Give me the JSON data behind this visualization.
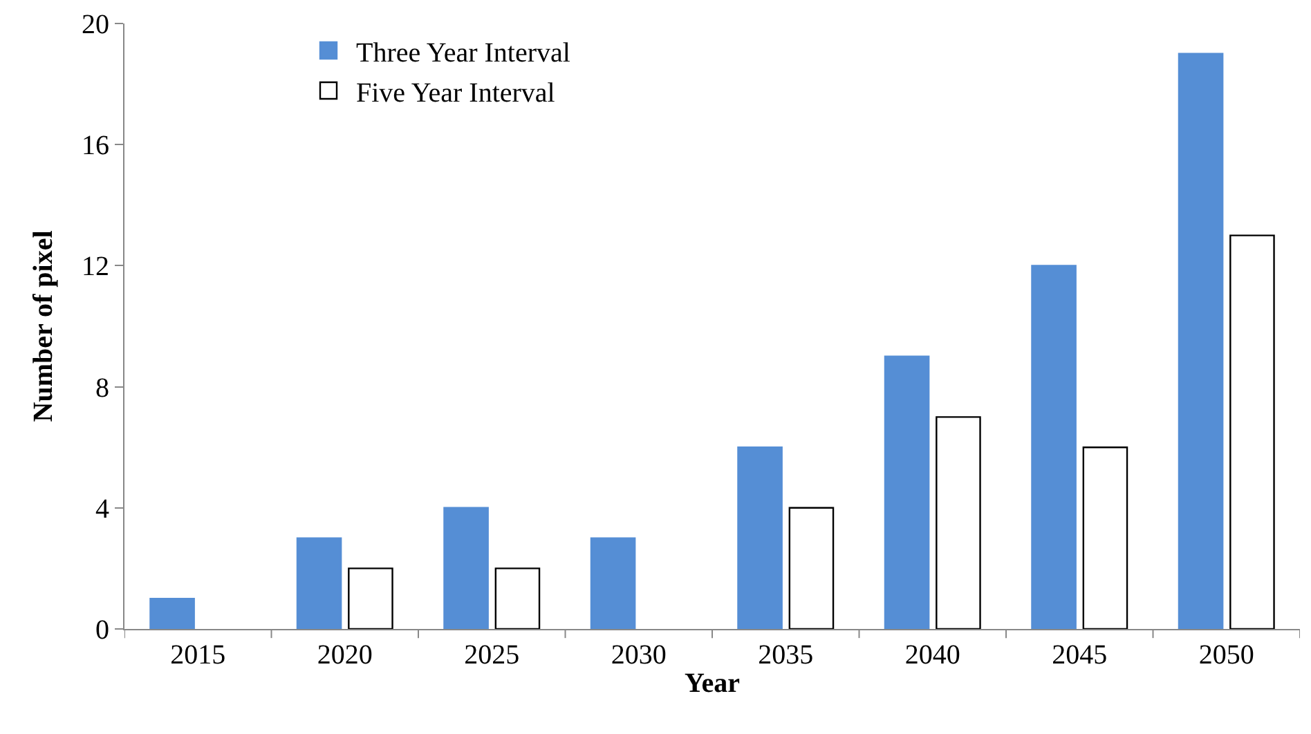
{
  "chart_data": {
    "type": "bar",
    "xlabel": "Year",
    "ylabel": "Number of pixel",
    "categories": [
      "2015",
      "2020",
      "2025",
      "2030",
      "2035",
      "2040",
      "2045",
      "2050"
    ],
    "series": [
      {
        "name": "Three Year Interval",
        "color": "#558ed5",
        "values": [
          1,
          3,
          4,
          3,
          6,
          9,
          12,
          19
        ]
      },
      {
        "name": "Five Year Interval",
        "color": "#ffffff",
        "values": [
          null,
          2,
          2,
          null,
          4,
          7,
          6,
          13
        ]
      }
    ],
    "ylim": [
      0,
      20
    ],
    "yticks": [
      0,
      4,
      8,
      12,
      16,
      20
    ],
    "legend": "top left"
  }
}
